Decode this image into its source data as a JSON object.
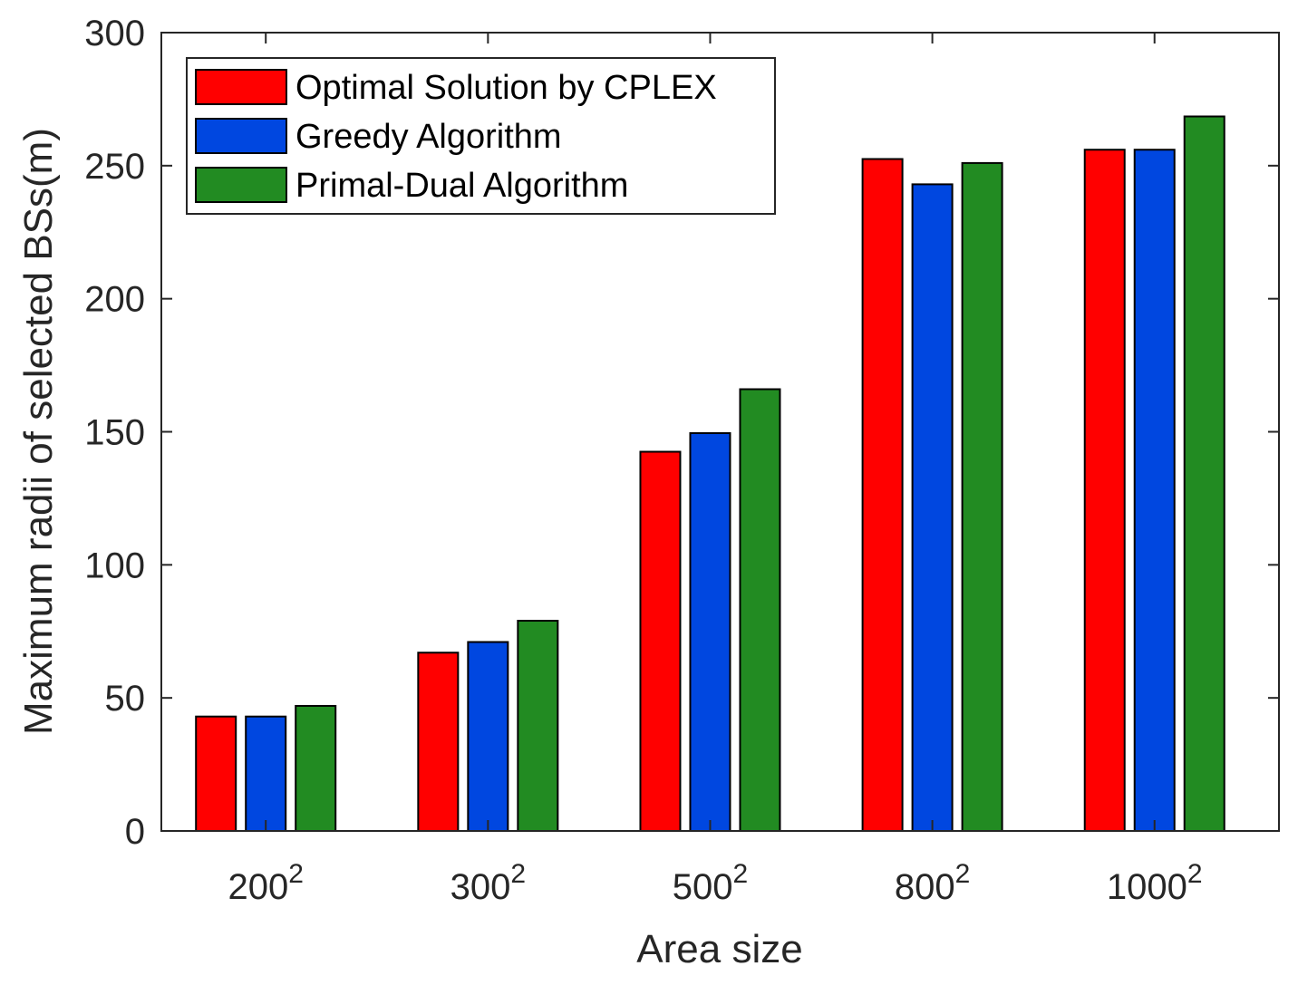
{
  "chart_data": {
    "type": "bar",
    "categories": [
      "200",
      "300",
      "500",
      "800",
      "1000"
    ],
    "category_exponent": "2",
    "series": [
      {
        "name": "Optimal Solution by CPLEX",
        "color": "#ff0000",
        "values": [
          43,
          67,
          142.5,
          252.5,
          256
        ]
      },
      {
        "name": "Greedy Algorithm",
        "color": "#0047e0",
        "values": [
          43,
          71,
          149.5,
          243,
          256
        ]
      },
      {
        "name": "Primal-Dual Algorithm",
        "color": "#228b22",
        "values": [
          47,
          79,
          166,
          251,
          268.5
        ]
      }
    ],
    "xlabel": "Area size",
    "ylabel": "Maximum radii of selected BSs(m)",
    "ylim": [
      0,
      300
    ],
    "yticks": [
      0,
      50,
      100,
      150,
      200,
      250,
      300
    ],
    "grid": false,
    "legend_position": "top-left"
  }
}
